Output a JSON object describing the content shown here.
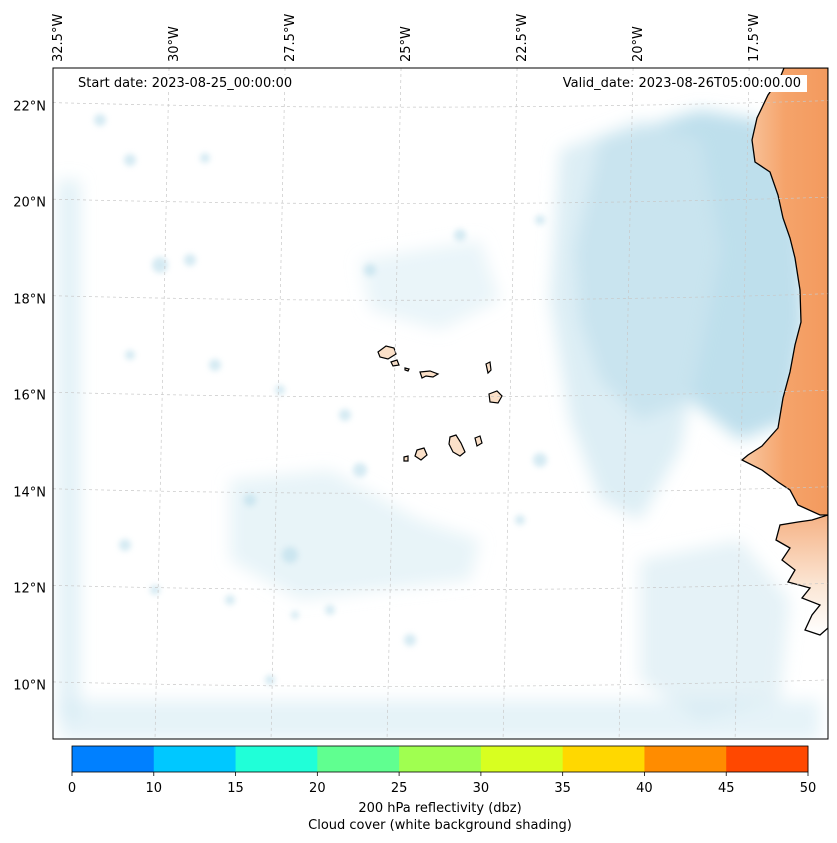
{
  "map": {
    "start_date_text": "Start date: 2023-08-25_00:00:00",
    "valid_date_text": "Valid_date: 2023-08-26T05:00:00.00",
    "lon_labels": [
      "32.5°W",
      "30°W",
      "27.5°W",
      "25°W",
      "22.5°W",
      "20°W",
      "17.5°W"
    ],
    "lat_labels": [
      "22°N",
      "20°N",
      "18°N",
      "16°N",
      "14°N",
      "12°N",
      "10°N"
    ],
    "lon_ticks_deg": [
      -32.5,
      -30,
      -27.5,
      -25,
      -22.5,
      -20,
      -17.5
    ],
    "lat_ticks_deg": [
      22,
      20,
      18,
      16,
      14,
      12,
      10
    ],
    "extent": {
      "lon_min": -32.5,
      "lon_max": -15.8,
      "lat_min": 8.9,
      "lat_max": 22.8
    }
  },
  "colorbar": {
    "ticks": [
      "0",
      "10",
      "15",
      "20",
      "25",
      "30",
      "35",
      "40",
      "45",
      "50"
    ],
    "colors": [
      "#0080ff",
      "#00c8ff",
      "#20ffd8",
      "#60ff90",
      "#a0ff50",
      "#d8ff20",
      "#ffd800",
      "#ff8c00",
      "#ff4800"
    ],
    "label_line1": "200 hPa reflectivity (dbz)",
    "label_line2": "Cloud cover (white background shading)"
  },
  "colors": {
    "cloud": "#a8d4e6",
    "land_warm": "#f5a36a",
    "island_fill": "#fbe0c8",
    "coast": "#000000",
    "grid": "#c8c8c8"
  }
}
